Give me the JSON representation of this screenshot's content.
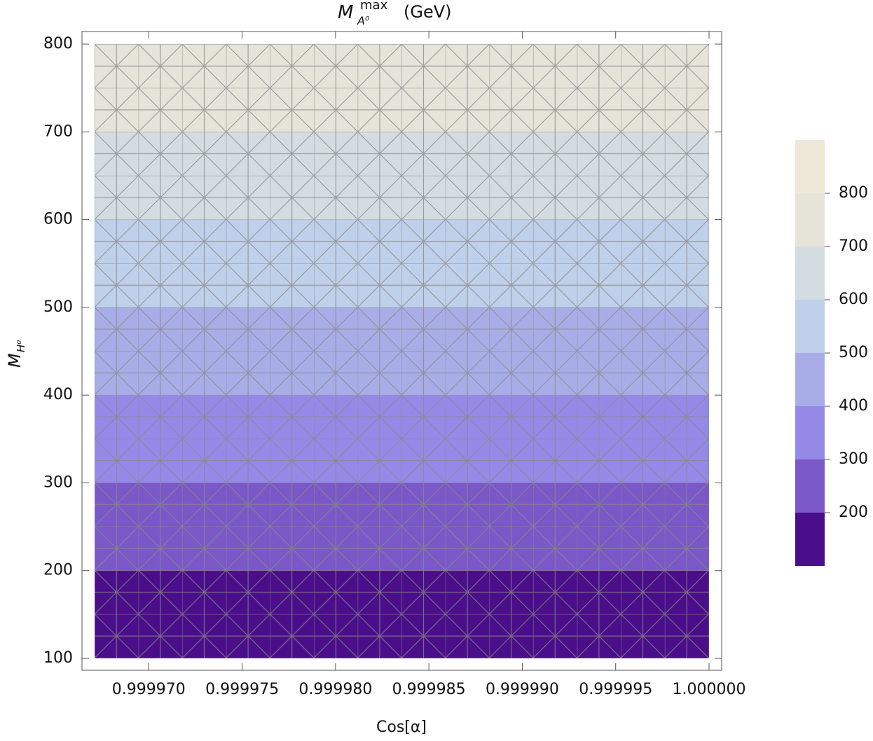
{
  "chart_data": {
    "type": "contour",
    "title": {
      "symbol": "M",
      "subscript": "A⁰",
      "superscript": "max",
      "unit": "(GeV)"
    },
    "x_label": "Cos[α]",
    "y_label": {
      "symbol": "M",
      "subscript": "H⁰"
    },
    "xlim": [
      0.9999671,
      1.0
    ],
    "xticks": [
      {
        "value": 0.99997,
        "label": "0.999970"
      },
      {
        "value": 0.999975,
        "label": "0.999975"
      },
      {
        "value": 0.99998,
        "label": "0.999980"
      },
      {
        "value": 0.999985,
        "label": "0.999985"
      },
      {
        "value": 0.99999,
        "label": "0.999990"
      },
      {
        "value": 0.999995,
        "label": "0.999995"
      },
      {
        "value": 1.0,
        "label": "1.000000"
      }
    ],
    "ylim": [
      100,
      800
    ],
    "yticks": [
      100,
      200,
      300,
      400,
      500,
      600,
      700,
      800
    ],
    "levels": [
      200,
      300,
      400,
      500,
      600,
      700,
      800
    ],
    "colors": [
      "#4a0e8a",
      "#7a58c8",
      "#9589e8",
      "#a8ade8",
      "#bfd0ea",
      "#d3dde1",
      "#e6e3d9",
      "#efe7d8"
    ],
    "clim": [
      100,
      900
    ],
    "cticks": [
      200,
      300,
      400,
      500,
      600,
      700,
      800
    ],
    "mesh": true
  }
}
